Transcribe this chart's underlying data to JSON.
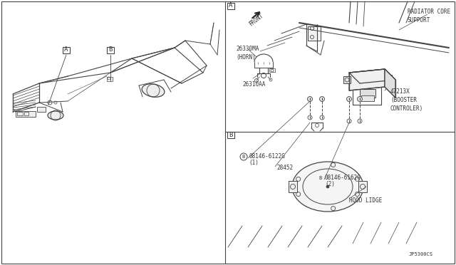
{
  "bg_color": "#ffffff",
  "line_color": "#444444",
  "text_color": "#333333",
  "fig_width": 6.4,
  "fig_height": 3.72,
  "dpi": 100,
  "labels": {
    "A_box": "A",
    "B_box": "B",
    "front": "FRONT",
    "radiator_core_support": "RADIATOR CORE\nSUPPORT",
    "part_26330MA": "26330MA\n(HORN)",
    "part_26310AA": "26310AA",
    "part_47213X": "47213X\n(BOOSTER\nCONTROLER)",
    "part_08146_6122G_label": "08146-6122G\n(1)",
    "part_28452": "28452",
    "part_08146_6162G_label": "08146-6162G\n(2)",
    "hood_lidge": "HOOD LIDGE",
    "diagram_code": "JP5300CS"
  }
}
